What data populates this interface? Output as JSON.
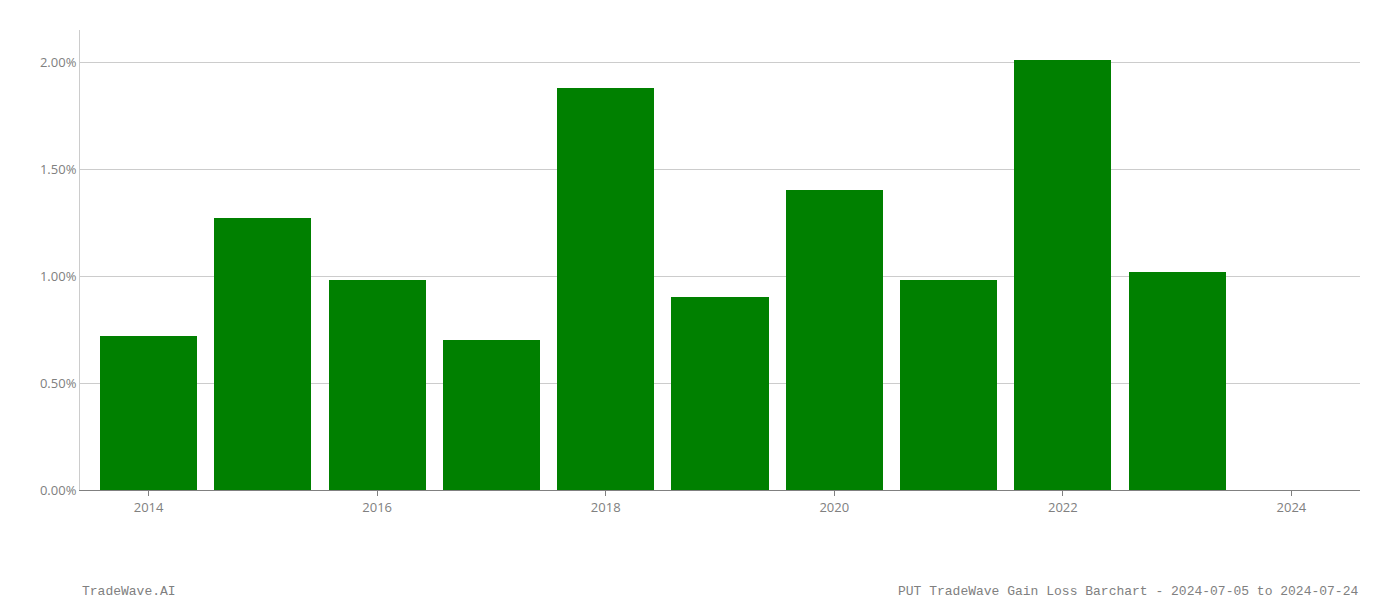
{
  "chart_data": {
    "type": "bar",
    "title": "PUT TradeWave Gain Loss Barchart - 2024-07-05 to 2024-07-24",
    "annotations": [
      "TradeWave.AI"
    ],
    "x": [
      2014,
      2015,
      2016,
      2017,
      2018,
      2019,
      2020,
      2021,
      2022,
      2023
    ],
    "values": [
      0.0072,
      0.0127,
      0.0098,
      0.007,
      0.0188,
      0.009,
      0.014,
      0.0098,
      0.0201,
      0.0102
    ],
    "color": "#008000",
    "xlim": [
      2013.4,
      2024.6
    ],
    "xticks": [
      2014,
      2016,
      2018,
      2020,
      2022,
      2024
    ],
    "ylim": [
      0,
      0.0215
    ],
    "yticks": [
      {
        "value": 0.0,
        "label": "0.00%"
      },
      {
        "value": 0.005,
        "label": "0.50%"
      },
      {
        "value": 0.01,
        "label": "1.00%"
      },
      {
        "value": 0.015,
        "label": "1.50%"
      },
      {
        "value": 0.02,
        "label": "2.00%"
      }
    ],
    "grid": true
  }
}
